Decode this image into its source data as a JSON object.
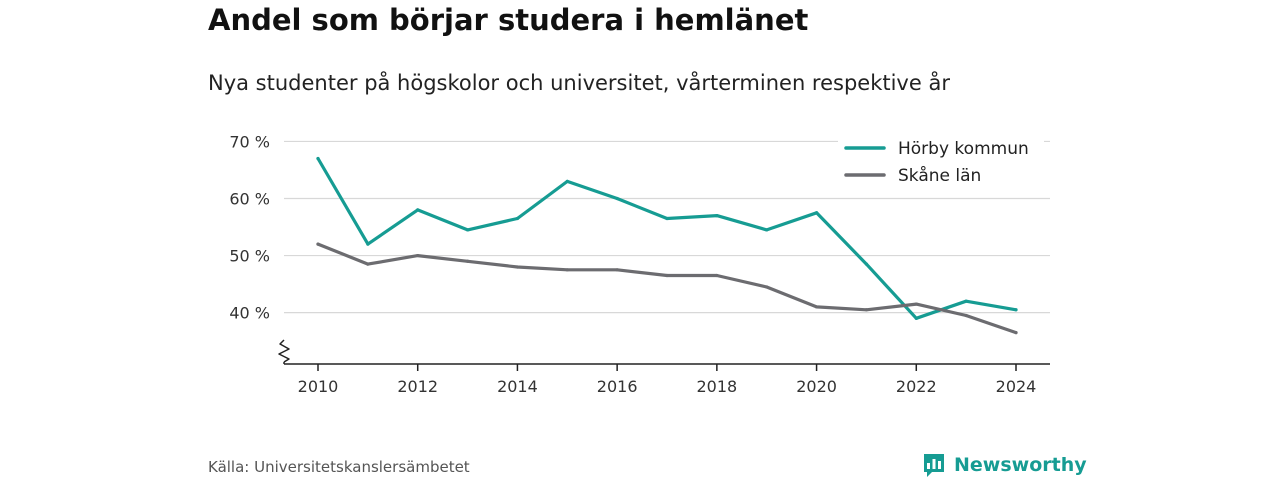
{
  "title": "Andel som börjar studera i hemlänet",
  "subtitle": "Nya studenter på högskolor och universitet, vårterminen respektive år",
  "source": "Källa: Universitetskanslersämbetet",
  "brand": {
    "name": "Newsworthy",
    "icon": "newsworthy-logo-icon",
    "color": "#169c93"
  },
  "chart_data": {
    "type": "line",
    "x": [
      2010,
      2011,
      2012,
      2013,
      2014,
      2015,
      2016,
      2017,
      2018,
      2019,
      2020,
      2021,
      2022,
      2023,
      2024
    ],
    "series": [
      {
        "name": "Hörby kommun",
        "color": "#169c93",
        "values": [
          67.0,
          52.0,
          58.0,
          54.5,
          56.5,
          63.0,
          60.0,
          56.5,
          57.0,
          54.5,
          57.5,
          48.5,
          39.0,
          42.0,
          40.5
        ]
      },
      {
        "name": "Skåne län",
        "color": "#6c6c70",
        "values": [
          52.0,
          48.5,
          50.0,
          49.0,
          48.0,
          47.5,
          47.5,
          46.5,
          46.5,
          44.5,
          41.0,
          40.5,
          41.5,
          39.5,
          36.5
        ]
      }
    ],
    "y_ticks": [
      40,
      50,
      60,
      70
    ],
    "y_tick_labels": [
      "40 %",
      "50 %",
      "60 %",
      "70 %"
    ],
    "x_ticks": [
      2010,
      2012,
      2014,
      2016,
      2018,
      2020,
      2022,
      2024
    ],
    "x_tick_labels": [
      "2010",
      "2012",
      "2014",
      "2016",
      "2018",
      "2020",
      "2022",
      "2024"
    ],
    "ylim": [
      31,
      72
    ],
    "y_axis_break": true,
    "grid": true,
    "legend": "top-right"
  }
}
